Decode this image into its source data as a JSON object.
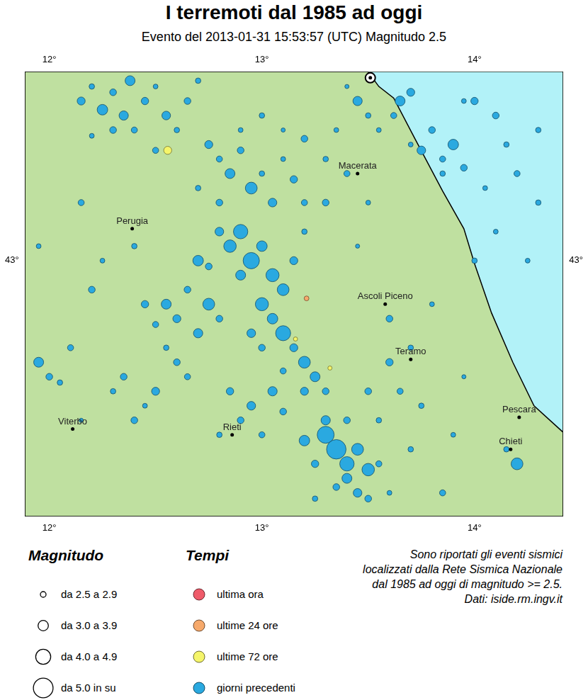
{
  "chart_data": {
    "type": "bubble",
    "title": "I terremoti dal 1985 ad oggi",
    "subtitle": "Evento del 2013-01-31 15:53:57 (UTC) Magnitudo 2.5",
    "xlim": [
      11.887,
      14.415
    ],
    "ylim": [
      42.12,
      43.65
    ],
    "xticks": [
      {
        "value": 12,
        "label": "12°"
      },
      {
        "value": 13,
        "label": "13°"
      },
      {
        "value": 14,
        "label": "14°"
      }
    ],
    "yticks": [
      {
        "value": 43,
        "label": "43°"
      }
    ],
    "grid": false,
    "series": [
      {
        "name": "ultima ora",
        "color": "#ef5b6a",
        "lon_lat_magnitude": []
      },
      {
        "name": "ultime 24 ore",
        "color": "#f6a96b",
        "lon_lat_magnitude": [
          [
            13.21,
            42.87,
            2.7
          ]
        ]
      },
      {
        "name": "ultime 72 ore",
        "color": "#f5f56a",
        "lon_lat_magnitude": [
          [
            12.557,
            43.38,
            3.2
          ],
          [
            13.158,
            42.73,
            2.6
          ],
          [
            13.32,
            42.63,
            2.6
          ]
        ]
      },
      {
        "name": "giorni precedenti",
        "color": "#2aa9e0",
        "lon_lat_magnitude": [
          [
            12.15,
            43.55,
            3.2
          ],
          [
            12.2,
            43.6,
            2.8
          ],
          [
            12.25,
            43.52,
            3.6
          ],
          [
            12.3,
            43.58,
            3.0
          ],
          [
            12.35,
            43.5,
            3.4
          ],
          [
            12.4,
            43.45,
            2.9
          ],
          [
            12.45,
            43.55,
            3.1
          ],
          [
            12.5,
            43.6,
            2.7
          ],
          [
            12.55,
            43.5,
            3.3
          ],
          [
            12.6,
            43.45,
            2.8
          ],
          [
            12.3,
            43.45,
            3.0
          ],
          [
            12.2,
            43.43,
            2.7
          ],
          [
            12.38,
            43.62,
            3.5
          ],
          [
            12.5,
            43.38,
            2.9
          ],
          [
            12.65,
            43.55,
            3.0
          ],
          [
            12.7,
            43.62,
            2.8
          ],
          [
            12.75,
            43.4,
            3.2
          ],
          [
            12.8,
            43.35,
            2.9
          ],
          [
            12.85,
            43.3,
            3.5
          ],
          [
            12.9,
            43.38,
            3.0
          ],
          [
            12.95,
            43.25,
            3.8
          ],
          [
            13.0,
            43.3,
            2.8
          ],
          [
            13.05,
            43.2,
            3.3
          ],
          [
            12.8,
            43.2,
            3.0
          ],
          [
            12.7,
            43.25,
            2.8
          ],
          [
            13.1,
            43.35,
            2.7
          ],
          [
            13.15,
            43.28,
            3.1
          ],
          [
            13.2,
            43.2,
            2.9
          ],
          [
            12.9,
            43.45,
            2.7
          ],
          [
            13.0,
            43.5,
            2.8
          ],
          [
            13.1,
            43.45,
            2.6
          ],
          [
            13.2,
            43.42,
            3.0
          ],
          [
            12.9,
            43.1,
            4.2
          ],
          [
            12.95,
            43.0,
            4.5
          ],
          [
            13.0,
            43.05,
            3.6
          ],
          [
            12.85,
            43.05,
            3.9
          ],
          [
            12.8,
            43.1,
            3.3
          ],
          [
            13.05,
            42.95,
            4.0
          ],
          [
            12.9,
            42.95,
            3.5
          ],
          [
            12.75,
            42.98,
            3.0
          ],
          [
            13.1,
            42.9,
            3.8
          ],
          [
            13.15,
            43.0,
            3.2
          ],
          [
            12.7,
            43.0,
            3.6
          ],
          [
            12.55,
            42.85,
            3.5
          ],
          [
            12.6,
            42.8,
            3.2
          ],
          [
            12.65,
            42.9,
            3.0
          ],
          [
            12.5,
            42.78,
            2.9
          ],
          [
            12.45,
            42.85,
            3.1
          ],
          [
            12.7,
            42.75,
            3.4
          ],
          [
            12.75,
            42.85,
            3.8
          ],
          [
            12.8,
            42.8,
            3.0
          ],
          [
            12.55,
            42.7,
            2.8
          ],
          [
            12.6,
            42.65,
            3.0
          ],
          [
            12.65,
            42.6,
            2.9
          ],
          [
            13.0,
            42.85,
            4.0
          ],
          [
            13.05,
            42.8,
            3.6
          ],
          [
            13.1,
            42.75,
            4.3
          ],
          [
            13.15,
            42.7,
            3.2
          ],
          [
            13.2,
            42.65,
            3.8
          ],
          [
            13.25,
            42.6,
            3.5
          ],
          [
            13.3,
            42.55,
            3.0
          ],
          [
            12.95,
            42.75,
            3.3
          ],
          [
            13.0,
            42.7,
            3.0
          ],
          [
            13.1,
            42.62,
            2.9
          ],
          [
            13.2,
            42.55,
            3.2
          ],
          [
            13.3,
            42.4,
            4.6
          ],
          [
            13.35,
            42.35,
            5.0
          ],
          [
            13.4,
            42.3,
            4.2
          ],
          [
            13.45,
            42.35,
            3.8
          ],
          [
            13.4,
            42.25,
            3.5
          ],
          [
            13.5,
            42.28,
            3.9
          ],
          [
            13.35,
            42.22,
            3.0
          ],
          [
            13.45,
            42.2,
            3.3
          ],
          [
            13.25,
            42.3,
            3.1
          ],
          [
            13.2,
            42.38,
            3.6
          ],
          [
            13.5,
            42.18,
            3.0
          ],
          [
            13.3,
            42.45,
            3.4
          ],
          [
            13.4,
            42.45,
            3.0
          ],
          [
            13.55,
            42.3,
            2.9
          ],
          [
            13.25,
            42.18,
            2.8
          ],
          [
            12.9,
            42.45,
            3.0
          ],
          [
            12.95,
            42.5,
            3.3
          ],
          [
            13.0,
            42.4,
            2.9
          ],
          [
            12.85,
            42.55,
            3.1
          ],
          [
            13.05,
            42.55,
            3.4
          ],
          [
            13.1,
            42.48,
            3.0
          ],
          [
            12.8,
            42.4,
            2.8
          ],
          [
            11.95,
            42.65,
            3.5
          ],
          [
            12.0,
            42.6,
            3.0
          ],
          [
            12.05,
            42.58,
            2.8
          ],
          [
            12.1,
            42.7,
            2.9
          ],
          [
            12.2,
            42.9,
            3.0
          ],
          [
            12.25,
            43.0,
            2.7
          ],
          [
            12.15,
            43.2,
            2.9
          ],
          [
            12.4,
            43.05,
            2.8
          ],
          [
            12.3,
            42.55,
            2.8
          ],
          [
            12.4,
            42.45,
            3.0
          ],
          [
            12.45,
            42.5,
            2.7
          ],
          [
            12.35,
            42.6,
            3.0
          ],
          [
            12.5,
            42.55,
            3.2
          ],
          [
            11.95,
            43.05,
            2.7
          ],
          [
            12.15,
            42.45,
            2.6
          ],
          [
            13.3,
            43.35,
            2.8
          ],
          [
            13.4,
            43.3,
            2.9
          ],
          [
            13.5,
            43.2,
            2.7
          ],
          [
            13.45,
            43.05,
            2.6
          ],
          [
            13.3,
            43.2,
            3.0
          ],
          [
            13.2,
            43.1,
            2.8
          ],
          [
            13.35,
            43.45,
            2.7
          ],
          [
            13.5,
            43.5,
            2.8
          ],
          [
            13.45,
            43.55,
            3.4
          ],
          [
            13.55,
            43.45,
            2.7
          ],
          [
            13.4,
            43.6,
            2.6
          ],
          [
            13.65,
            43.55,
            3.5
          ],
          [
            13.7,
            43.58,
            3.2
          ],
          [
            13.62,
            43.5,
            2.9
          ],
          [
            13.8,
            43.45,
            3.0
          ],
          [
            13.75,
            43.38,
            3.3
          ],
          [
            13.85,
            43.35,
            2.9
          ],
          [
            13.9,
            43.4,
            3.6
          ],
          [
            13.95,
            43.32,
            3.0
          ],
          [
            13.85,
            43.3,
            2.8
          ],
          [
            13.7,
            43.4,
            2.7
          ],
          [
            14.0,
            43.55,
            3.1
          ],
          [
            14.1,
            43.5,
            3.0
          ],
          [
            14.15,
            43.4,
            2.8
          ],
          [
            14.2,
            43.3,
            2.9
          ],
          [
            14.3,
            43.2,
            2.8
          ],
          [
            14.1,
            43.1,
            2.7
          ],
          [
            14.0,
            43.0,
            2.8
          ],
          [
            14.25,
            43.0,
            2.7
          ],
          [
            14.3,
            43.45,
            2.8
          ],
          [
            13.95,
            43.55,
            2.7
          ],
          [
            14.05,
            43.25,
            2.7
          ],
          [
            13.6,
            42.8,
            3.0
          ],
          [
            13.7,
            42.7,
            2.8
          ],
          [
            13.8,
            42.85,
            2.7
          ],
          [
            13.65,
            42.55,
            2.9
          ],
          [
            13.75,
            42.5,
            2.8
          ],
          [
            14.2,
            42.3,
            3.8
          ],
          [
            14.15,
            42.35,
            2.8
          ],
          [
            13.9,
            42.4,
            2.7
          ],
          [
            13.7,
            42.35,
            2.8
          ],
          [
            13.85,
            42.2,
            2.9
          ],
          [
            13.6,
            42.65,
            3.1
          ],
          [
            13.5,
            42.55,
            3.0
          ],
          [
            13.55,
            42.45,
            2.8
          ],
          [
            13.6,
            42.2,
            2.7
          ],
          [
            13.95,
            42.6,
            2.6
          ]
        ]
      }
    ],
    "coastline": [
      [
        13.5,
        43.65
      ],
      [
        13.55,
        43.6
      ],
      [
        13.62,
        43.56
      ],
      [
        13.72,
        43.42
      ],
      [
        13.85,
        43.24
      ],
      [
        13.95,
        43.11
      ],
      [
        14.0,
        42.99
      ],
      [
        14.08,
        42.82
      ],
      [
        14.18,
        42.65
      ],
      [
        14.28,
        42.5
      ],
      [
        14.415,
        42.41
      ]
    ],
    "event": {
      "lon": 13.51,
      "lat": 43.63
    },
    "cities": [
      {
        "name": "Macerata",
        "lon": 13.45,
        "lat": 43.3
      },
      {
        "name": "Perugia",
        "lon": 12.39,
        "lat": 43.11
      },
      {
        "name": "Ascoli Piceno",
        "lon": 13.58,
        "lat": 42.85
      },
      {
        "name": "Teramo",
        "lon": 13.7,
        "lat": 42.66
      },
      {
        "name": "Pescara",
        "lon": 14.21,
        "lat": 42.46
      },
      {
        "name": "Chieti",
        "lon": 14.17,
        "lat": 42.35
      },
      {
        "name": "Viterbo",
        "lon": 12.11,
        "lat": 42.42
      },
      {
        "name": "Rieti",
        "lon": 12.86,
        "lat": 42.4
      }
    ],
    "magnitudo_legend": {
      "title": "Magnitudo",
      "classes": [
        "da 2.5 a 2.9",
        "da 3.0 a 3.9",
        "da 4.0 a 4.9",
        "da 5.0 in su"
      ]
    },
    "tempi_legend_title": "Tempi",
    "note": [
      "Sono riportati gli eventi sismici",
      "localizzati dalla Rete Sismica Nazionale",
      "dal 1985 ad oggi di magnitudo >= 2.5.",
      "Dati: iside.rm.ingv.it"
    ]
  }
}
